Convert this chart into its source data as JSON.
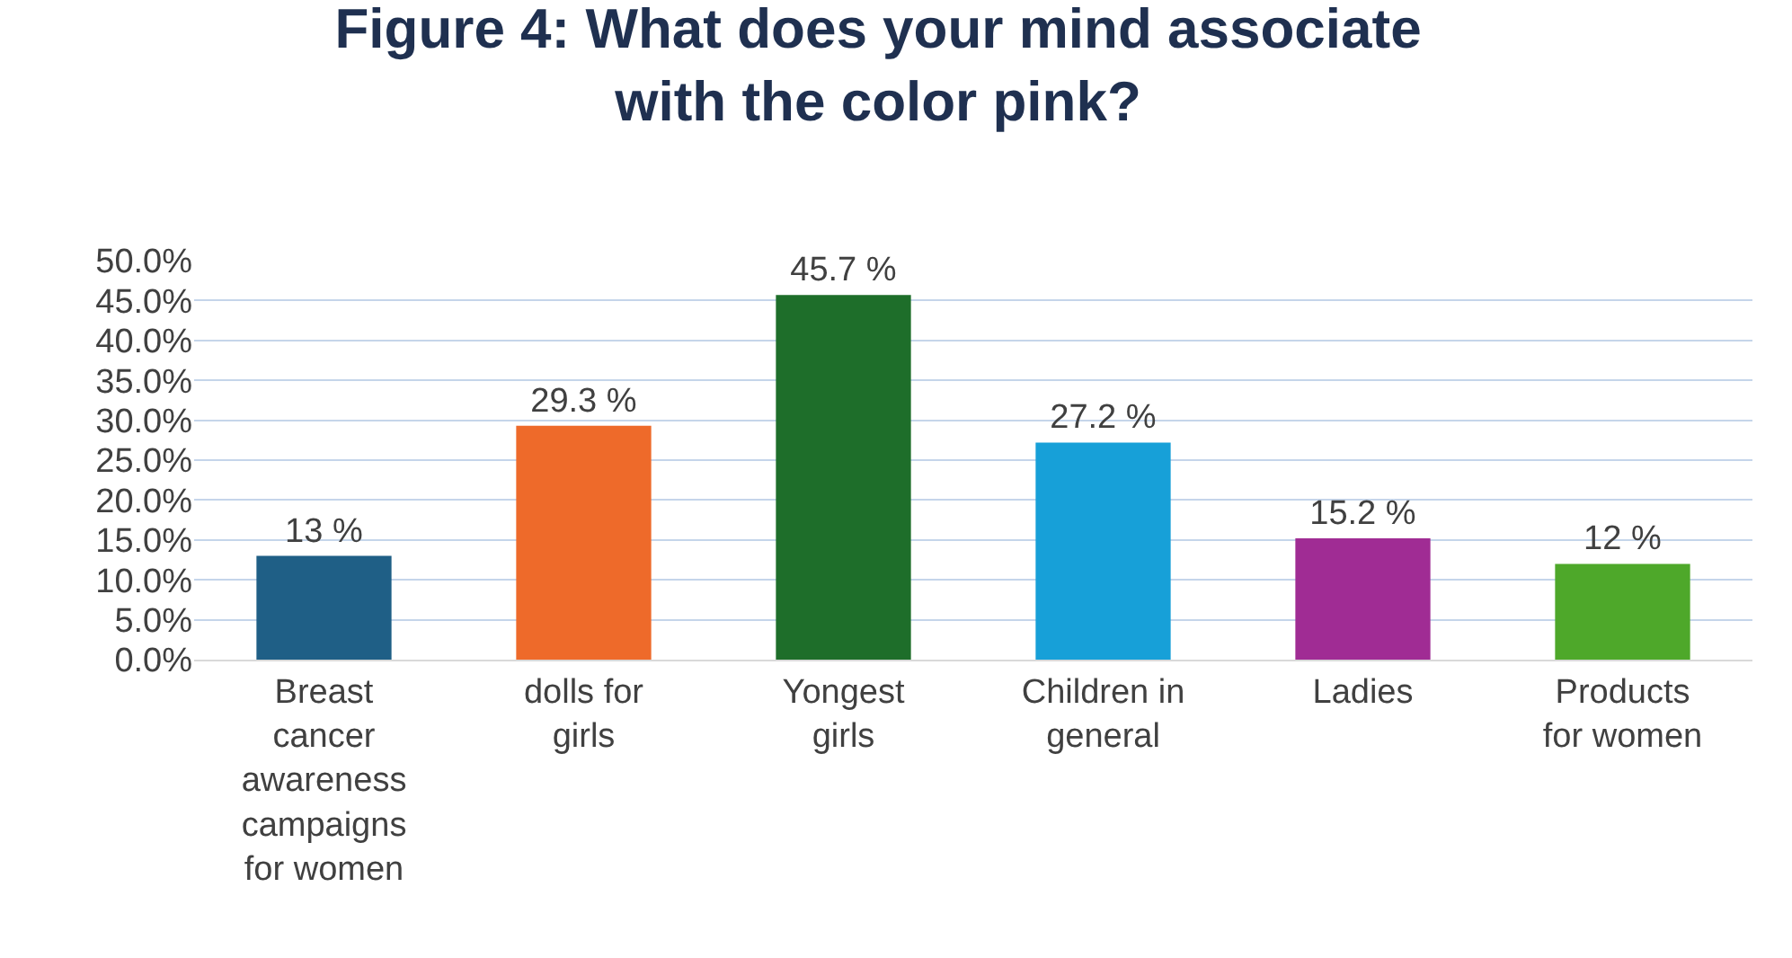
{
  "chart_data": {
    "type": "bar",
    "title": "Figure 4: What does your mind associate\nwith the color pink?",
    "categories": [
      "Breast cancer awareness campaigns for women",
      "dolls for girls",
      "Yongest girls",
      "Children in general",
      "Ladies",
      "Products for women"
    ],
    "values": [
      13,
      29.3,
      45.7,
      27.2,
      15.2,
      12
    ],
    "colors": [
      "#1f5f86",
      "#ee6a2a",
      "#1e6e2a",
      "#17a0d8",
      "#a02c94",
      "#4ea82a"
    ],
    "value_labels": [
      "13 %",
      "29.3 %",
      "45.7 %",
      "27.2 %",
      "15.2 %",
      "12 %"
    ],
    "ylim": [
      0,
      50
    ],
    "yticks": [
      {
        "value": 0,
        "label": "0.0%"
      },
      {
        "value": 5,
        "label": "5.0%"
      },
      {
        "value": 10,
        "label": "10.0%"
      },
      {
        "value": 15,
        "label": "15.0%"
      },
      {
        "value": 20,
        "label": "20.0%"
      },
      {
        "value": 25,
        "label": "25.0%"
      },
      {
        "value": 30,
        "label": "30.0%"
      },
      {
        "value": 35,
        "label": "35.0%"
      },
      {
        "value": 40,
        "label": "40.0%"
      },
      {
        "value": 45,
        "label": "45.0%"
      },
      {
        "value": 50,
        "label": "50.0%"
      }
    ],
    "grid": "y"
  }
}
